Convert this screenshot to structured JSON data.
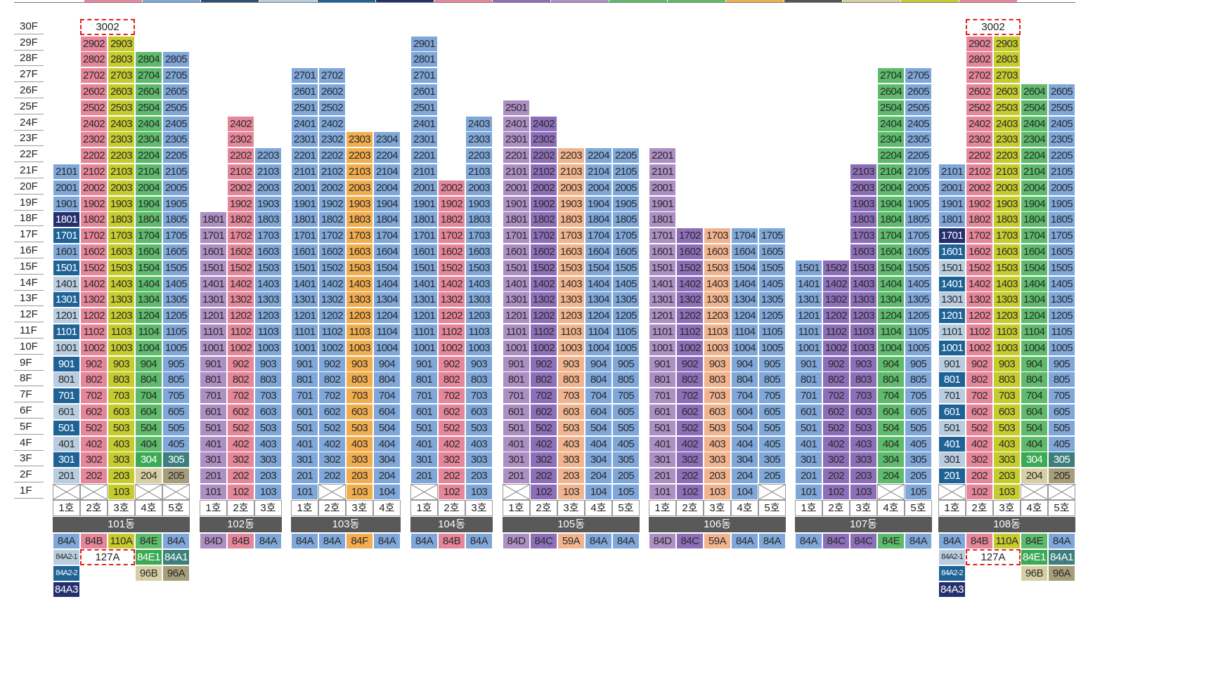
{
  "floors": [
    "1F",
    "2F",
    "3F",
    "4F",
    "5F",
    "6F",
    "7F",
    "8F",
    "9F",
    "10F",
    "11F",
    "12F",
    "13F",
    "14F",
    "15F",
    "16F",
    "17F",
    "18F",
    "19F",
    "20F",
    "21F",
    "22F",
    "23F",
    "24F",
    "25F",
    "26F",
    "27F",
    "28F",
    "29F",
    "30F"
  ],
  "ho_labels": [
    "1호",
    "2호",
    "3호",
    "4호",
    "5호"
  ],
  "colors": {
    "84A": "#7fa7d9",
    "84B": "#e6869b",
    "110A": "#c7cc2e",
    "84E": "#5dbb6b",
    "84A2-1": "#b9cde0",
    "84A2-2": "#1f6396",
    "84A3": "#262f6e",
    "84D": "#ad8fc4",
    "84F": "#f2ad4e",
    "84C": "#8c6fb8",
    "59A": "#f2b48e",
    "96B": "#d6cfa3",
    "96A": "#a69d7a",
    "84E1": "#3aaa53",
    "84A1": "#3d7f7d",
    "127A": "#ffffff"
  },
  "top_swatches": [
    "#e6869b",
    "#7fa7d9",
    "#2f5070",
    "#b9cde0",
    "#1f6396",
    "#262f6e",
    "#e6869b",
    "#8c6fb8",
    "#ad8fc4",
    "#5dbb6b",
    "#5dbb6b",
    "#f2ad4e",
    "#555555",
    "#d6cfa3",
    "#c7cc2e",
    "#e6869b"
  ],
  "buildings": [
    {
      "name": "101동",
      "cols": [
        {
          "ho": 1,
          "base": "84A",
          "tops": 21,
          "map": {
            "2": "84A2-1",
            "3": "84A2-2",
            "4": "84A2-1",
            "5": "84A2-2",
            "6": "84A2-1",
            "7": "84A2-2",
            "8": "84A2-1",
            "9": "84A2-2",
            "10": "84A2-1",
            "11": "84A2-2",
            "12": "84A2-1",
            "13": "84A2-2",
            "14": "84A2-1",
            "15": "84A2-2",
            "17": "84A2-2",
            "18": "84A3"
          },
          "missing": [
            1
          ]
        },
        {
          "ho": 2,
          "base": "84B",
          "tops": 29,
          "missing": [
            1
          ]
        },
        {
          "ho": 3,
          "base": "110A",
          "tops": 29
        },
        {
          "ho": 4,
          "base": "84E",
          "tops": 28,
          "map": {
            "2": "96B",
            "3": "84E1"
          },
          "missing": [
            1
          ]
        },
        {
          "ho": 5,
          "base": "84A",
          "tops": 28,
          "map": {
            "2": "96A",
            "3": "84A1"
          },
          "missing": [
            1
          ]
        }
      ],
      "penthouse": {
        "label": "3002",
        "col": 1,
        "span": 2
      },
      "types": [
        [
          "84A"
        ],
        [
          "84B"
        ],
        [
          "110A"
        ],
        [
          "84E"
        ],
        [
          "84A"
        ]
      ],
      "types2": [
        "84A2-1",
        "127A",
        "84E1",
        "84A1"
      ],
      "types3": [
        "84A2-2",
        "96B",
        "96A"
      ],
      "types4": [
        "84A3"
      ]
    },
    {
      "name": "102동",
      "cols": [
        {
          "ho": 1,
          "base": "84D",
          "tops": 18
        },
        {
          "ho": 2,
          "base": "84B",
          "tops": 24
        },
        {
          "ho": 3,
          "base": "84A",
          "tops": 22
        }
      ],
      "types": [
        [
          "84D"
        ],
        [
          "84B"
        ],
        [
          "84A"
        ]
      ]
    },
    {
      "name": "103동",
      "cols": [
        {
          "ho": 1,
          "base": "84A",
          "tops": 27
        },
        {
          "ho": 2,
          "base": "84A",
          "tops": 27,
          "missing": [
            1
          ]
        },
        {
          "ho": 3,
          "base": "84F",
          "tops": 23
        },
        {
          "ho": 4,
          "base": "84A",
          "tops": 23
        }
      ],
      "types": [
        [
          "84A"
        ],
        [
          "84A"
        ],
        [
          "84F"
        ],
        [
          "84A"
        ]
      ]
    },
    {
      "name": "104동",
      "cols": [
        {
          "ho": 1,
          "base": "84A",
          "tops": 29,
          "missing": [
            1
          ]
        },
        {
          "ho": 2,
          "base": "84B",
          "tops": 20
        },
        {
          "ho": 3,
          "base": "84A",
          "tops": 24
        }
      ],
      "types": [
        [
          "84A"
        ],
        [
          "84B"
        ],
        [
          "84A"
        ]
      ]
    },
    {
      "name": "105동",
      "cols": [
        {
          "ho": 1,
          "base": "84D",
          "tops": 25,
          "missing": [
            1
          ]
        },
        {
          "ho": 2,
          "base": "84C",
          "tops": 24
        },
        {
          "ho": 3,
          "base": "59A",
          "tops": 22
        },
        {
          "ho": 4,
          "base": "84A",
          "tops": 22
        },
        {
          "ho": 5,
          "base": "84A",
          "tops": 22
        }
      ],
      "types": [
        [
          "84D"
        ],
        [
          "84C"
        ],
        [
          "59A"
        ],
        [
          "84A"
        ],
        [
          "84A"
        ]
      ]
    },
    {
      "name": "106동",
      "cols": [
        {
          "ho": 1,
          "base": "84D",
          "tops": 22
        },
        {
          "ho": 2,
          "base": "84C",
          "tops": 17
        },
        {
          "ho": 3,
          "base": "59A",
          "tops": 17
        },
        {
          "ho": 4,
          "base": "84A",
          "tops": 17
        },
        {
          "ho": 5,
          "base": "84A",
          "tops": 17,
          "missing": [
            1
          ]
        }
      ],
      "types": [
        [
          "84D"
        ],
        [
          "84C"
        ],
        [
          "59A"
        ],
        [
          "84A"
        ],
        [
          "84A"
        ]
      ]
    },
    {
      "name": "107동",
      "cols": [
        {
          "ho": 1,
          "base": "84A",
          "tops": 15
        },
        {
          "ho": 2,
          "base": "84C",
          "tops": 15
        },
        {
          "ho": 3,
          "base": "84C",
          "tops": 21
        },
        {
          "ho": 4,
          "base": "84E",
          "tops": 27,
          "missing": [
            1
          ]
        },
        {
          "ho": 5,
          "base": "84A",
          "tops": 27
        }
      ],
      "types": [
        [
          "84A"
        ],
        [
          "84C"
        ],
        [
          "84C"
        ],
        [
          "84E"
        ],
        [
          "84A"
        ]
      ]
    },
    {
      "name": "108동",
      "cols": [
        {
          "ho": 1,
          "base": "84A",
          "tops": 21,
          "map": {
            "2": "84A2-2",
            "4": "84A2-2",
            "6": "84A2-2",
            "8": "84A2-2",
            "10": "84A2-2",
            "12": "84A2-2",
            "14": "84A2-2",
            "16": "84A2-2",
            "17": "84A3",
            "3": "84A2-1",
            "5": "84A2-1",
            "7": "84A2-1",
            "9": "84A2-1",
            "11": "84A2-1",
            "13": "84A2-1",
            "15": "84A2-1"
          },
          "missing": [
            1
          ]
        },
        {
          "ho": 2,
          "base": "84B",
          "tops": 29
        },
        {
          "ho": 3,
          "base": "110A",
          "tops": 29
        },
        {
          "ho": 4,
          "base": "84E",
          "tops": 26,
          "map": {
            "2": "96B",
            "3": "84E1"
          },
          "missing": [
            1
          ]
        },
        {
          "ho": 5,
          "base": "84A",
          "tops": 26,
          "map": {
            "2": "96A",
            "3": "84A1"
          },
          "missing": [
            1
          ]
        }
      ],
      "penthouse": {
        "label": "3002",
        "col": 1,
        "span": 2
      },
      "types": [
        [
          "84A"
        ],
        [
          "84B"
        ],
        [
          "110A"
        ],
        [
          "84E"
        ],
        [
          "84A"
        ]
      ],
      "types2": [
        "84A2-1",
        "127A",
        "84E1",
        "84A1"
      ],
      "types3": [
        "84A2-2",
        "96B",
        "96A"
      ],
      "types4": [
        "84A3"
      ]
    }
  ]
}
